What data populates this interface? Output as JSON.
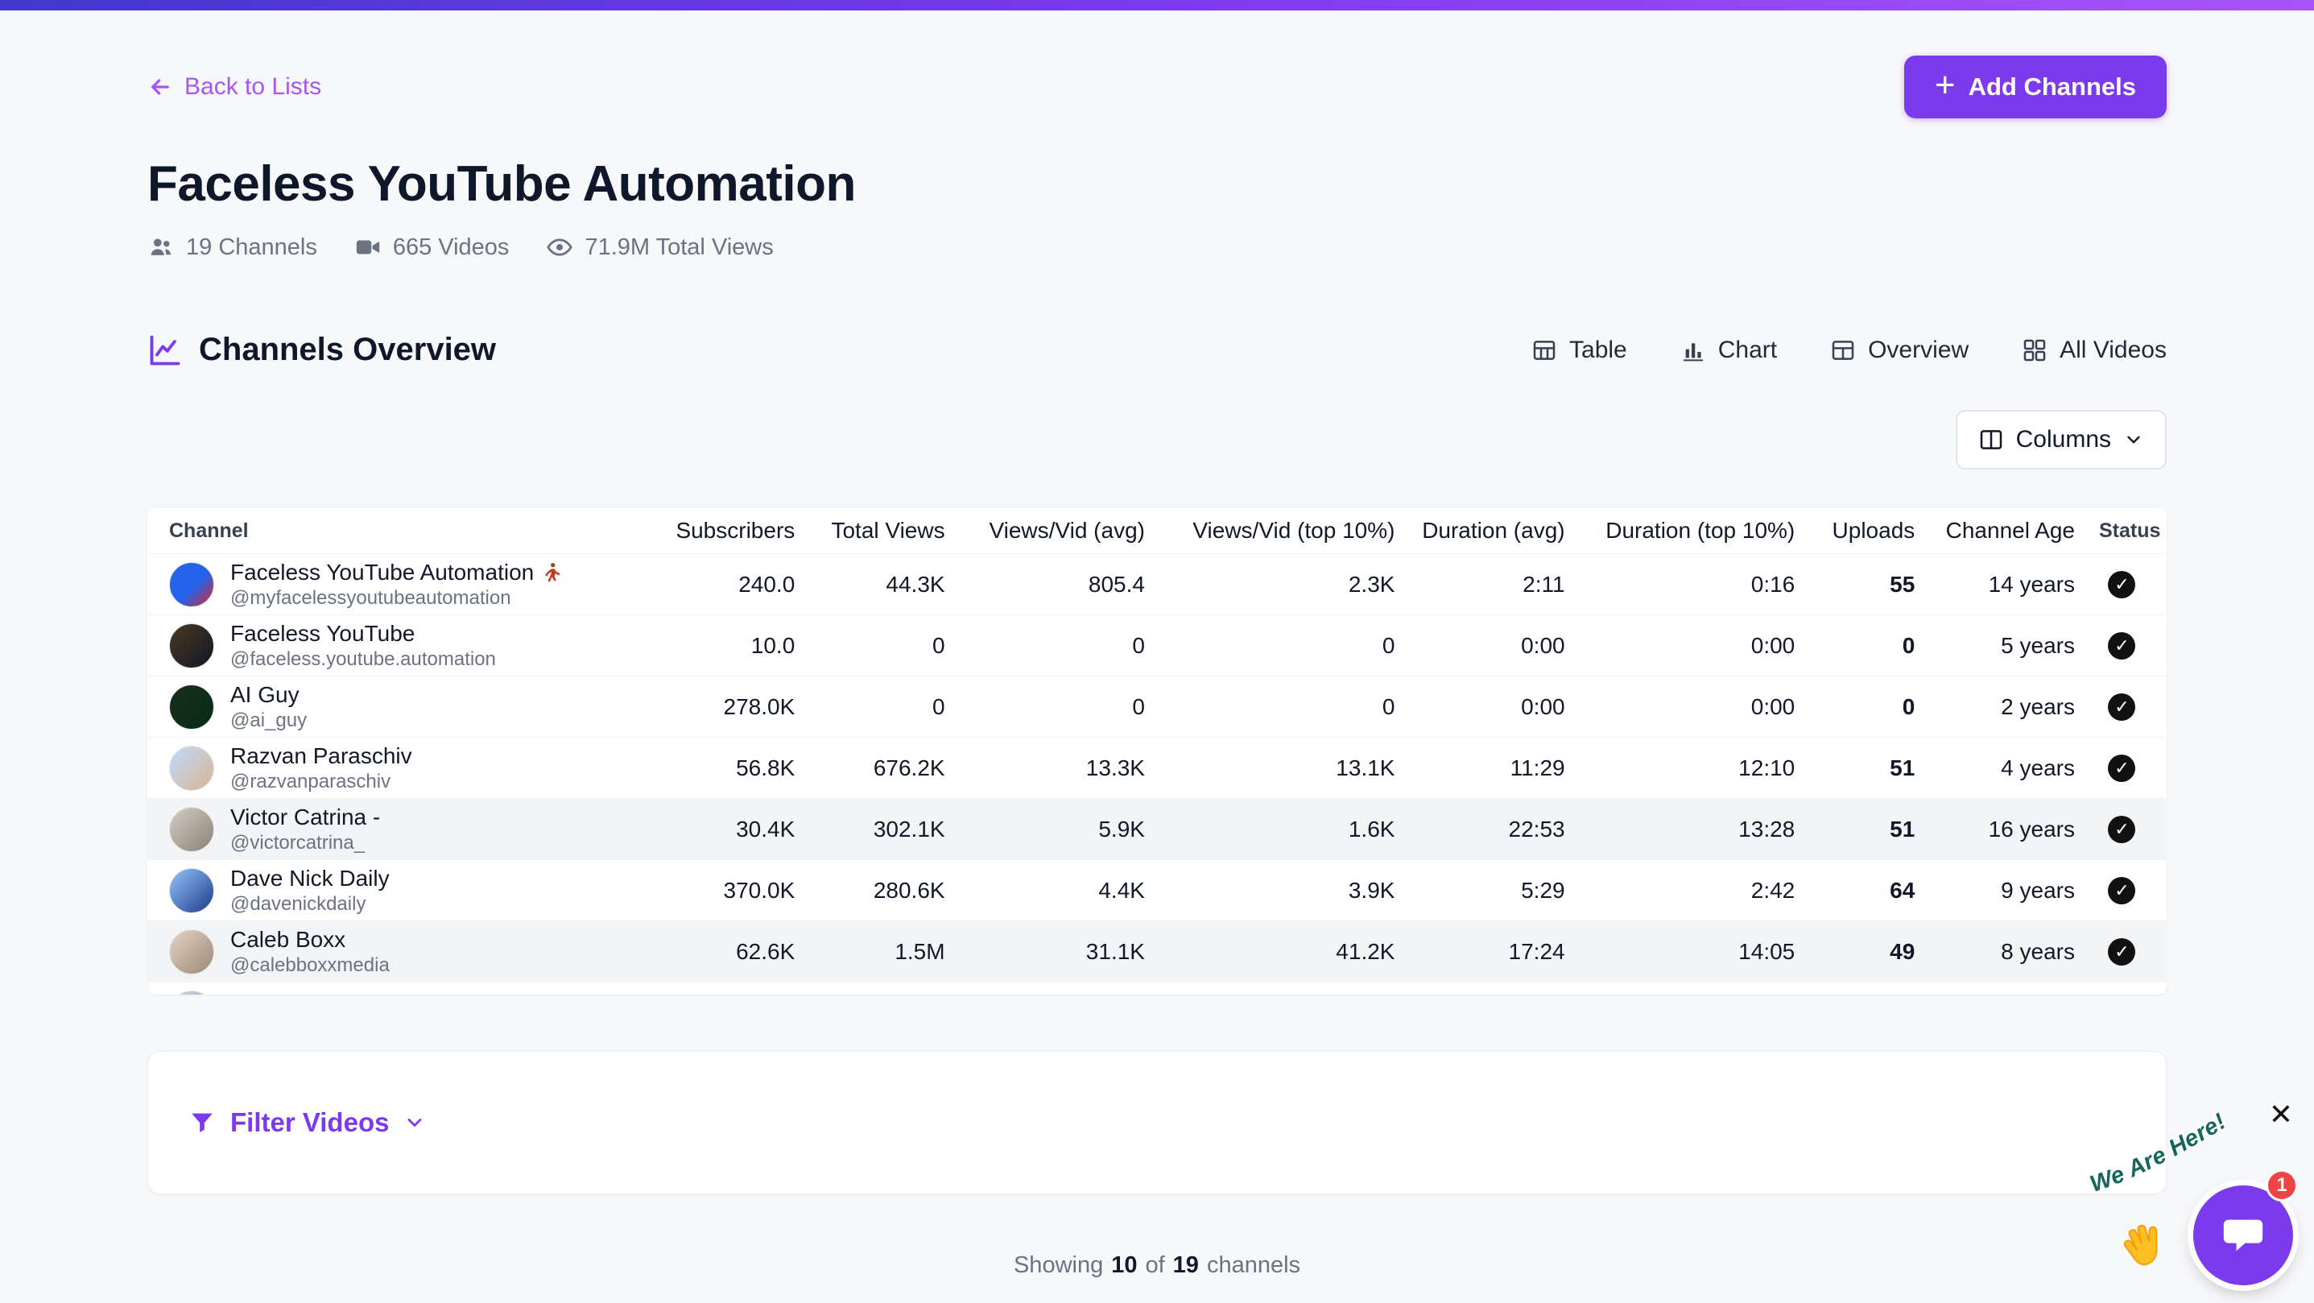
{
  "colors": {
    "accent": "#7c3aed",
    "link_purple": "#a855f7",
    "topbar_gradient": [
      "#4338ca",
      "#7c3aed",
      "#a855f7"
    ],
    "badge_red": "#ef4444",
    "arc_text_green": "#14665a",
    "status_black": "#111111"
  },
  "header": {
    "back_link": "Back to Lists",
    "add_button": "Add Channels"
  },
  "page": {
    "title": "Faceless YouTube Automation",
    "stats": [
      {
        "icon": "people-icon",
        "label": "19 Channels"
      },
      {
        "icon": "video-camera-icon",
        "label": "665 Videos"
      },
      {
        "icon": "eye-icon",
        "label": "71.9M Total Views"
      }
    ]
  },
  "overview": {
    "section_title": "Channels Overview",
    "view_tabs": [
      {
        "icon": "table-icon",
        "label": "Table"
      },
      {
        "icon": "bar-chart-icon",
        "label": "Chart"
      },
      {
        "icon": "overview-grid-icon",
        "label": "Overview"
      },
      {
        "icon": "all-videos-grid-icon",
        "label": "All Videos"
      }
    ],
    "columns_button": "Columns"
  },
  "table": {
    "headers": [
      "Channel",
      "Subscribers",
      "Total Views",
      "Views/Vid (avg)",
      "Views/Vid (top 10%)",
      "Duration (avg)",
      "Duration (top 10%)",
      "Uploads",
      "Channel Age",
      "Status"
    ],
    "rows": [
      {
        "name": "Faceless YouTube Automation",
        "name_icon": "dancer-icon",
        "handle": "@myfacelessyoutubeautomation",
        "subscribers": "240.0",
        "total_views": "44.3K",
        "views_avg": "805.4",
        "views_top": "2.3K",
        "duration_avg": "2:11",
        "duration_top": "0:16",
        "uploads": "55",
        "age": "14 years",
        "status": true,
        "avatar": "linear-gradient(135deg,#2563eb 55%,#dc2626)"
      },
      {
        "name": "Faceless YouTube",
        "handle": "@faceless.youtube.automation",
        "subscribers": "10.0",
        "total_views": "0",
        "views_avg": "0",
        "views_top": "0",
        "duration_avg": "0:00",
        "duration_top": "0:00",
        "uploads": "0",
        "age": "5 years",
        "status": true,
        "avatar": "linear-gradient(135deg,#4b3621,#111827)"
      },
      {
        "name": "AI Guy",
        "handle": "@ai_guy",
        "subscribers": "278.0K",
        "total_views": "0",
        "views_avg": "0",
        "views_top": "0",
        "duration_avg": "0:00",
        "duration_top": "0:00",
        "uploads": "0",
        "age": "2 years",
        "status": true,
        "avatar": "linear-gradient(135deg,#1a2e1a,#052e16)"
      },
      {
        "name": "Razvan Paraschiv",
        "handle": "@razvanparaschiv",
        "subscribers": "56.8K",
        "total_views": "676.2K",
        "views_avg": "13.3K",
        "views_top": "13.1K",
        "duration_avg": "11:29",
        "duration_top": "12:10",
        "uploads": "51",
        "age": "4 years",
        "status": true,
        "avatar": "linear-gradient(135deg,#bfdbfe,#d9b48f)"
      },
      {
        "name": "Victor Catrina -",
        "handle": "@victorcatrina_",
        "subscribers": "30.4K",
        "total_views": "302.1K",
        "views_avg": "5.9K",
        "views_top": "1.6K",
        "duration_avg": "22:53",
        "duration_top": "13:28",
        "uploads": "51",
        "age": "16 years",
        "status": true,
        "avatar": "linear-gradient(135deg,#d6cfc7,#8a7f72)"
      },
      {
        "name": "Dave Nick Daily",
        "handle": "@davenickdaily",
        "subscribers": "370.0K",
        "total_views": "280.6K",
        "views_avg": "4.4K",
        "views_top": "3.9K",
        "duration_avg": "5:29",
        "duration_top": "2:42",
        "uploads": "64",
        "age": "9 years",
        "status": true,
        "avatar": "linear-gradient(135deg,#93c5fd,#1e3a8a)"
      },
      {
        "name": "Caleb Boxx",
        "handle": "@calebboxxmedia",
        "subscribers": "62.6K",
        "total_views": "1.5M",
        "views_avg": "31.1K",
        "views_top": "41.2K",
        "duration_avg": "17:24",
        "duration_top": "14:05",
        "uploads": "49",
        "age": "8 years",
        "status": true,
        "avatar": "linear-gradient(135deg,#e5d5c5,#9a8878)"
      },
      {
        "name": "",
        "handle": "",
        "subscribers": "",
        "total_views": "",
        "views_avg": "",
        "views_top": "",
        "duration_avg": "",
        "duration_top": "",
        "uploads": "",
        "age": "",
        "status": false,
        "avatar": "linear-gradient(135deg,#cbd5e1,#94a3b8)"
      }
    ]
  },
  "filter": {
    "label": "Filter Videos"
  },
  "footer": {
    "showing": "Showing",
    "shown": "10",
    "of": "of",
    "total": "19",
    "channels": "channels"
  },
  "chat": {
    "arc_text": "We Are Here!",
    "badge": "1",
    "close": "✕"
  }
}
